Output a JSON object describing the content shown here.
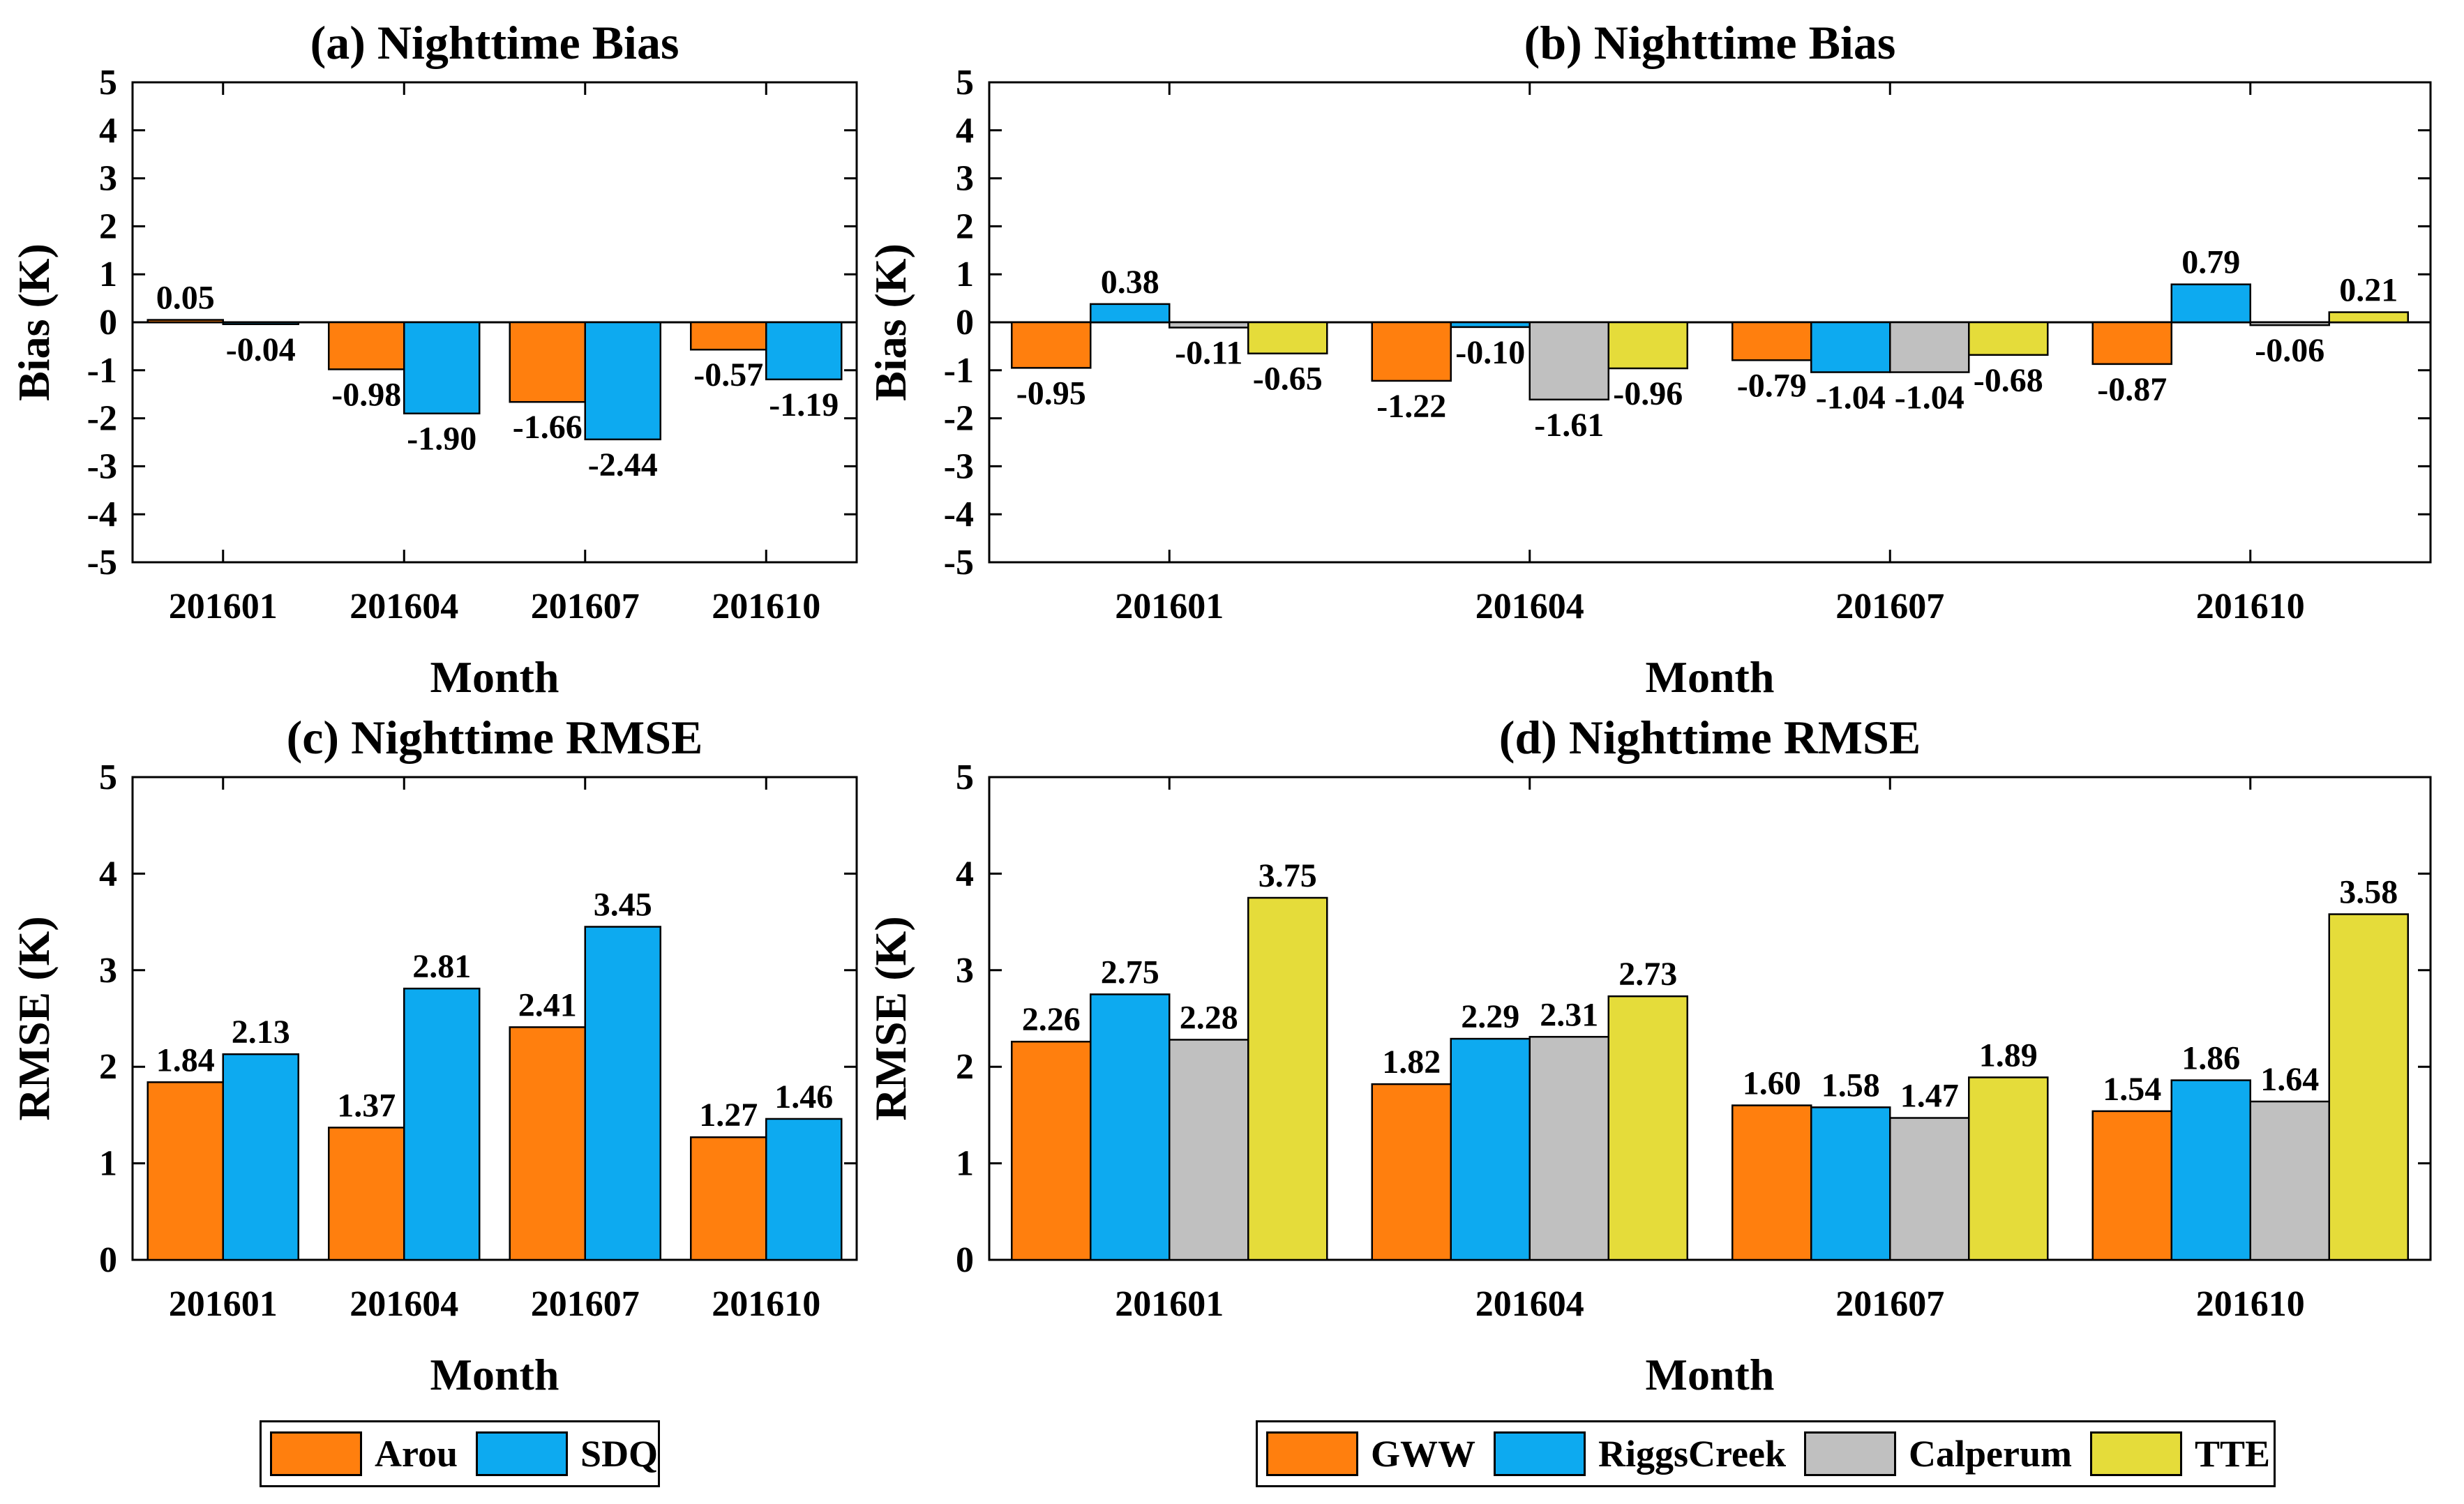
{
  "colors": {
    "Arou": "#FF7F0E",
    "SDQ": "#0DAAF0",
    "GWW": "#FF7F0E",
    "RiggsCreek": "#0DAAF0",
    "Calperum": "#C0C0C0",
    "TTE": "#E5DC3A"
  },
  "legends": {
    "left": [
      "Arou",
      "SDQ"
    ],
    "right": [
      "GWW",
      "RiggsCreek",
      "Calperum",
      "TTE"
    ]
  },
  "chart_data": [
    {
      "id": "a",
      "type": "bar",
      "title": "(a) Nighttime Bias",
      "xlabel": "Month",
      "ylabel": "Bias (K)",
      "ylim": [
        -5,
        5
      ],
      "yticks": [
        "-5",
        "-4",
        "-3",
        "-2",
        "-1",
        "0",
        "1",
        "2",
        "3",
        "4",
        "5"
      ],
      "categories": [
        "201601",
        "201604",
        "201607",
        "201610"
      ],
      "series": [
        {
          "name": "Arou",
          "values": [
            0.05,
            -0.98,
            -1.66,
            -0.57
          ],
          "labels": [
            "0.05",
            "-0.98",
            "-1.66",
            "-0.57"
          ]
        },
        {
          "name": "SDQ",
          "values": [
            -0.04,
            -1.9,
            -2.44,
            -1.19
          ],
          "labels": [
            "-0.04",
            "-1.90",
            "-2.44",
            "-1.19"
          ]
        }
      ]
    },
    {
      "id": "b",
      "type": "bar",
      "title": "(b) Nighttime Bias",
      "xlabel": "Month",
      "ylabel": "Bias (K)",
      "ylim": [
        -5,
        5
      ],
      "yticks": [
        "-5",
        "-4",
        "-3",
        "-2",
        "-1",
        "0",
        "1",
        "2",
        "3",
        "4",
        "5"
      ],
      "categories": [
        "201601",
        "201604",
        "201607",
        "201610"
      ],
      "series": [
        {
          "name": "GWW",
          "values": [
            -0.95,
            -1.22,
            -0.79,
            -0.87
          ],
          "labels": [
            "-0.95",
            "-1.22",
            "-0.79",
            "-0.87"
          ]
        },
        {
          "name": "RiggsCreek",
          "values": [
            0.38,
            -0.1,
            -1.04,
            0.79
          ],
          "labels": [
            "0.38",
            "-0.10",
            "-1.04",
            "0.79"
          ]
        },
        {
          "name": "Calperum",
          "values": [
            -0.11,
            -1.61,
            -1.04,
            -0.06
          ],
          "labels": [
            "-0.11",
            "-1.61",
            "-1.04",
            "-0.06"
          ]
        },
        {
          "name": "TTE",
          "values": [
            -0.65,
            -0.96,
            -0.68,
            0.21
          ],
          "labels": [
            "-0.65",
            "-0.96",
            "-0.68",
            "0.21"
          ]
        }
      ]
    },
    {
      "id": "c",
      "type": "bar",
      "title": "(c) Nighttime RMSE",
      "xlabel": "Month",
      "ylabel": "RMSE (K)",
      "ylim": [
        0,
        5
      ],
      "yticks": [
        "0",
        "1",
        "2",
        "3",
        "4",
        "5"
      ],
      "categories": [
        "201601",
        "201604",
        "201607",
        "201610"
      ],
      "series": [
        {
          "name": "Arou",
          "values": [
            1.84,
            1.37,
            2.41,
            1.27
          ],
          "labels": [
            "1.84",
            "1.37",
            "2.41",
            "1.27"
          ]
        },
        {
          "name": "SDQ",
          "values": [
            2.13,
            2.81,
            3.45,
            1.46
          ],
          "labels": [
            "2.13",
            "2.81",
            "3.45",
            "1.46"
          ]
        }
      ]
    },
    {
      "id": "d",
      "type": "bar",
      "title": "(d) Nighttime RMSE",
      "xlabel": "Month",
      "ylabel": "RMSE (K)",
      "ylim": [
        0,
        5
      ],
      "yticks": [
        "0",
        "1",
        "2",
        "3",
        "4",
        "5"
      ],
      "categories": [
        "201601",
        "201604",
        "201607",
        "201610"
      ],
      "series": [
        {
          "name": "GWW",
          "values": [
            2.26,
            1.82,
            1.6,
            1.54
          ],
          "labels": [
            "2.26",
            "1.82",
            "1.60",
            "1.54"
          ]
        },
        {
          "name": "RiggsCreek",
          "values": [
            2.75,
            2.29,
            1.58,
            1.86
          ],
          "labels": [
            "2.75",
            "2.29",
            "1.58",
            "1.86"
          ]
        },
        {
          "name": "Calperum",
          "values": [
            2.28,
            2.31,
            1.47,
            1.64
          ],
          "labels": [
            "2.28",
            "2.31",
            "1.47",
            "1.64"
          ]
        },
        {
          "name": "TTE",
          "values": [
            3.75,
            2.73,
            1.89,
            3.58
          ],
          "labels": [
            "3.75",
            "2.73",
            "1.89",
            "3.58"
          ]
        }
      ]
    }
  ]
}
